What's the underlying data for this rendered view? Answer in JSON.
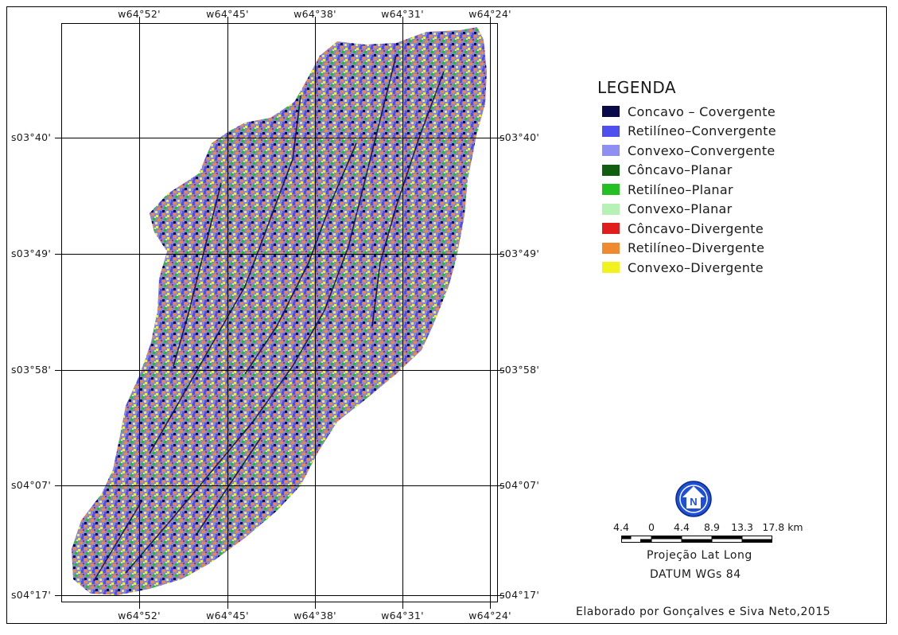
{
  "map": {
    "longitudes": [
      "w64°52'",
      "w64°45'",
      "w64°38'",
      "w64°31'",
      "w64°24'"
    ],
    "latitudes": [
      "s03°40'",
      "s03°49'",
      "s03°58'",
      "s04°07'",
      "s04°17'"
    ]
  },
  "legend": {
    "title": "LEGENDA",
    "items": [
      {
        "label": "Concavo – Covergente",
        "color": "#0a0a4a"
      },
      {
        "label": "Retilíneo–Convergente",
        "color": "#4f4fee"
      },
      {
        "label": "Convexo–Convergente",
        "color": "#8f8ff2"
      },
      {
        "label": "Côncavo–Planar",
        "color": "#0f5f0f"
      },
      {
        "label": "Retilíneo–Planar",
        "color": "#22c022"
      },
      {
        "label": "Convexo–Planar",
        "color": "#b6f2b6"
      },
      {
        "label": "Côncavo–Divergente",
        "color": "#e01e1e"
      },
      {
        "label": "Retilíneo–Divergente",
        "color": "#f08a30"
      },
      {
        "label": "Convexo–Divergente",
        "color": "#f2f21e"
      }
    ]
  },
  "north_arrow": {
    "letter": "N",
    "icon": "north-arrow-icon",
    "color": "#1e4fd8"
  },
  "scale": {
    "labels": [
      "4.4",
      "0",
      "4.4",
      "8.9",
      "13.3",
      "17.8 km"
    ]
  },
  "projection": "Projeção Lat Long",
  "datum": "DATUM WGs 84",
  "credit": "Elaborado por Gonçalves e Siva Neto,2015"
}
